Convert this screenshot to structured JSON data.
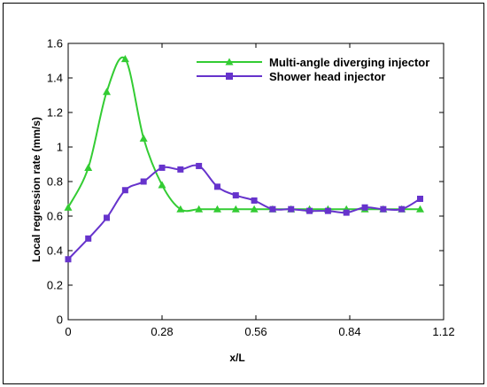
{
  "chart_data": {
    "type": "line",
    "title": "",
    "xlabel": "x/L",
    "ylabel": "Local regression rate (mm/s)",
    "xlim": [
      0,
      1.12
    ],
    "ylim": [
      0,
      1.6
    ],
    "xticks": [
      0,
      0.28,
      0.56,
      0.84,
      1.12
    ],
    "xtick_labels": [
      "0",
      "0.28",
      "0.56",
      "0.84",
      "1.12"
    ],
    "yticks": [
      0,
      0.2,
      0.4,
      0.6,
      0.8,
      1.0,
      1.2,
      1.4,
      1.6
    ],
    "ytick_labels": [
      "0",
      "0.2",
      "0.4",
      "0.6",
      "0.8",
      "1",
      "1.2",
      "1.4",
      "1.6"
    ],
    "grid": false,
    "legend_position": "top-right",
    "series": [
      {
        "name": "Multi-angle diverging injector",
        "color": "#33cc33",
        "marker": "triangle",
        "x": [
          0.0,
          0.06,
          0.115,
          0.17,
          0.225,
          0.28,
          0.335,
          0.39,
          0.445,
          0.5,
          0.555,
          0.61,
          0.665,
          0.72,
          0.775,
          0.83,
          0.885,
          0.94,
          0.995,
          1.05
        ],
        "y": [
          0.65,
          0.88,
          1.32,
          1.51,
          1.05,
          0.78,
          0.64,
          0.64,
          0.64,
          0.64,
          0.64,
          0.64,
          0.64,
          0.64,
          0.64,
          0.64,
          0.64,
          0.64,
          0.64,
          0.64
        ]
      },
      {
        "name": "Shower head injector",
        "color": "#6633cc",
        "marker": "square",
        "x": [
          0.0,
          0.06,
          0.115,
          0.17,
          0.225,
          0.28,
          0.335,
          0.39,
          0.445,
          0.5,
          0.555,
          0.61,
          0.665,
          0.72,
          0.775,
          0.83,
          0.885,
          0.94,
          0.995,
          1.05
        ],
        "y": [
          0.35,
          0.47,
          0.59,
          0.75,
          0.8,
          0.88,
          0.87,
          0.89,
          0.77,
          0.72,
          0.69,
          0.64,
          0.64,
          0.63,
          0.63,
          0.62,
          0.65,
          0.64,
          0.64,
          0.7
        ]
      }
    ]
  }
}
